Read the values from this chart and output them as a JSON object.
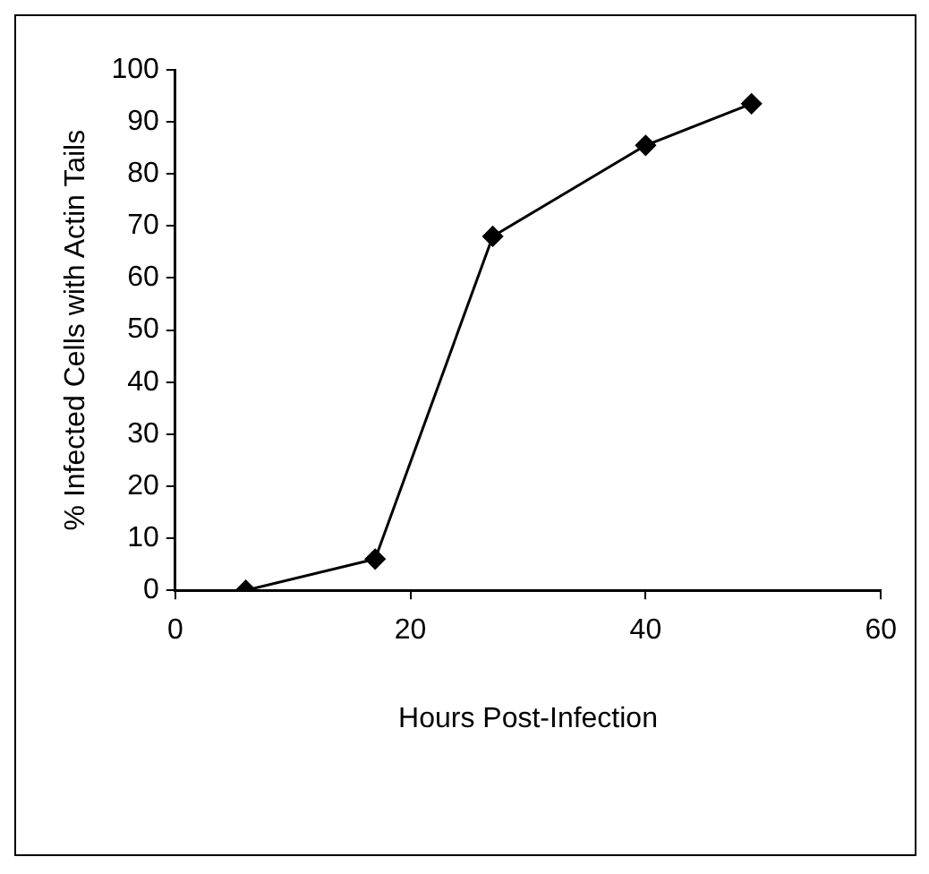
{
  "chart_data": {
    "type": "line",
    "xlabel": "Hours Post-Infection",
    "ylabel": "% Infected Cells with Actin Tails",
    "x": [
      6,
      17,
      27,
      40,
      49
    ],
    "series": [
      {
        "color": "#000000",
        "values": [
          0,
          6,
          68,
          85.5,
          93.5
        ]
      }
    ],
    "xlim": [
      0,
      60
    ],
    "xticks": [
      0,
      20,
      40,
      60
    ],
    "ylim": [
      0,
      100
    ],
    "yticks": [
      0,
      10,
      20,
      30,
      40,
      50,
      60,
      70,
      80,
      90,
      100
    ],
    "grid": false,
    "legend": false,
    "marker": "diamond",
    "line_style": "solid"
  }
}
